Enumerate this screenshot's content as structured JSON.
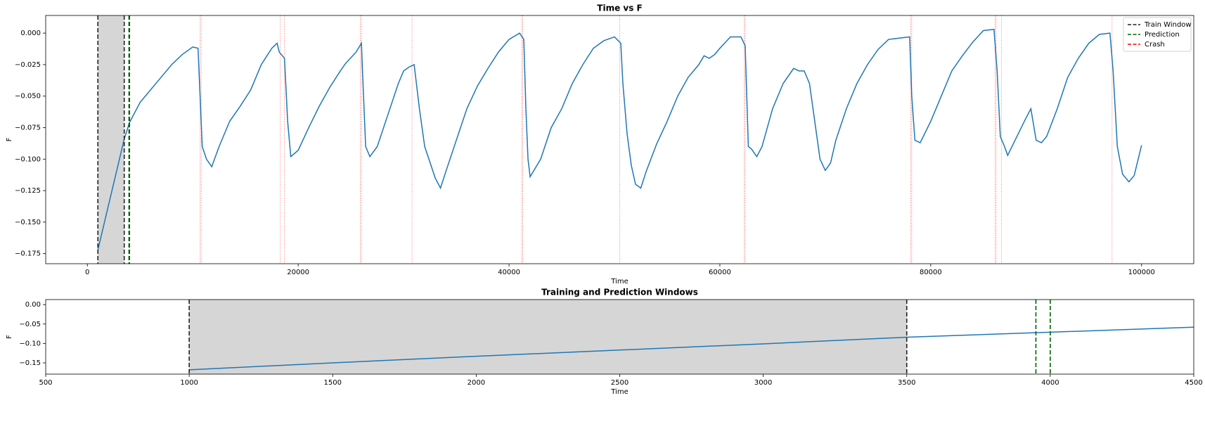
{
  "chart_data": [
    {
      "type": "line",
      "title": "Time vs F",
      "xlabel": "Time",
      "ylabel": "F",
      "color": "#1f77b4",
      "x": [
        1000,
        3500,
        4000,
        5000,
        6000,
        7000,
        8000,
        9000,
        10000,
        10500,
        10900,
        11300,
        11800,
        12500,
        13500,
        14500,
        15500,
        16500,
        17500,
        18000,
        18200,
        18700,
        19000,
        19300,
        20000,
        21000,
        22000,
        23000,
        24000,
        24500,
        25500,
        26000,
        26100,
        26400,
        26800,
        27500,
        28500,
        29500,
        30000,
        30500,
        31000,
        31500,
        32000,
        33000,
        33500,
        34000,
        35000,
        36000,
        37000,
        38000,
        39000,
        40000,
        41000,
        41400,
        41600,
        41800,
        42000,
        43000,
        44000,
        45000,
        46000,
        47000,
        48000,
        49000,
        50000,
        50600,
        50800,
        51200,
        51600,
        52000,
        52500,
        53000,
        54000,
        55000,
        56000,
        57000,
        58000,
        58500,
        59000,
        59500,
        60000,
        61000,
        62000,
        62400,
        62700,
        63000,
        63500,
        64000,
        65000,
        66000,
        67000,
        67500,
        68000,
        68500,
        69000,
        69500,
        70000,
        70500,
        71000,
        72000,
        73000,
        74000,
        75000,
        76000,
        77000,
        78000,
        78200,
        78500,
        79000,
        80000,
        81000,
        82000,
        83000,
        84000,
        85000,
        86000,
        86300,
        86600,
        87000,
        87300,
        88000,
        89000,
        89500,
        90000,
        90500,
        91000,
        92000,
        93000,
        94000,
        95000,
        96000,
        97000,
        97300,
        97700,
        98200,
        98800,
        99300,
        100000
      ],
      "values": [
        -0.172,
        -0.084,
        -0.071,
        -0.055,
        -0.045,
        -0.035,
        -0.025,
        -0.017,
        -0.011,
        -0.012,
        -0.09,
        -0.1,
        -0.106,
        -0.09,
        -0.07,
        -0.058,
        -0.045,
        -0.025,
        -0.012,
        -0.008,
        -0.015,
        -0.02,
        -0.07,
        -0.098,
        -0.093,
        -0.075,
        -0.058,
        -0.043,
        -0.03,
        -0.024,
        -0.015,
        -0.008,
        -0.03,
        -0.09,
        -0.098,
        -0.09,
        -0.065,
        -0.04,
        -0.03,
        -0.027,
        -0.025,
        -0.06,
        -0.09,
        -0.115,
        -0.123,
        -0.11,
        -0.085,
        -0.06,
        -0.042,
        -0.028,
        -0.015,
        -0.005,
        0.0,
        -0.005,
        -0.06,
        -0.1,
        -0.114,
        -0.1,
        -0.075,
        -0.06,
        -0.04,
        -0.025,
        -0.012,
        -0.006,
        -0.003,
        -0.008,
        -0.04,
        -0.08,
        -0.105,
        -0.12,
        -0.123,
        -0.11,
        -0.088,
        -0.07,
        -0.05,
        -0.035,
        -0.025,
        -0.018,
        -0.02,
        -0.017,
        -0.012,
        -0.003,
        -0.003,
        -0.01,
        -0.09,
        -0.092,
        -0.098,
        -0.09,
        -0.06,
        -0.04,
        -0.028,
        -0.03,
        -0.03,
        -0.04,
        -0.07,
        -0.1,
        -0.109,
        -0.103,
        -0.085,
        -0.06,
        -0.04,
        -0.025,
        -0.013,
        -0.005,
        -0.004,
        -0.003,
        -0.05,
        -0.085,
        -0.087,
        -0.07,
        -0.05,
        -0.03,
        -0.018,
        -0.007,
        0.002,
        0.003,
        -0.03,
        -0.082,
        -0.09,
        -0.097,
        -0.085,
        -0.068,
        -0.06,
        -0.085,
        -0.087,
        -0.082,
        -0.06,
        -0.035,
        -0.02,
        -0.008,
        -0.001,
        0.0,
        -0.03,
        -0.09,
        -0.112,
        -0.118,
        -0.113,
        -0.089
      ],
      "train_window": [
        1000,
        3500
      ],
      "prediction_window": [
        3950,
        4000
      ],
      "crashes": [
        10700,
        10800,
        18300,
        18700,
        25900,
        26000,
        30800,
        41200,
        41300,
        50500,
        62300,
        62400,
        78100,
        78200,
        86100,
        86200,
        86700,
        97200
      ],
      "xlim": [
        -3950,
        104950
      ],
      "ylim": [
        -0.183,
        0.014
      ],
      "xticks": [
        0,
        20000,
        40000,
        60000,
        80000,
        100000
      ],
      "yticks": [
        {
          "value": 0,
          "label": "0.000"
        },
        {
          "value": -0.025,
          "label": "−0.025"
        },
        {
          "value": -0.05,
          "label": "−0.050"
        },
        {
          "value": -0.075,
          "label": "−0.075"
        },
        {
          "value": -0.1,
          "label": "−0.100"
        },
        {
          "value": -0.125,
          "label": "−0.125"
        },
        {
          "value": -0.15,
          "label": "−0.150"
        },
        {
          "value": -0.175,
          "label": "−0.175"
        }
      ],
      "legend": {
        "position": "upper right",
        "entries": [
          {
            "name": "Train Window",
            "color": "#222222"
          },
          {
            "name": "Prediction",
            "color": "#006400"
          },
          {
            "name": "Crash",
            "color": "#ff0000"
          }
        ]
      }
    },
    {
      "type": "line",
      "title": "Training and Prediction Windows",
      "xlabel": "Time",
      "ylabel": "F",
      "color": "#1f77b4",
      "x": [
        1000,
        1500,
        2000,
        2500,
        3000,
        3500,
        4000,
        4500
      ],
      "values": [
        -0.168,
        -0.15,
        -0.133,
        -0.117,
        -0.101,
        -0.084,
        -0.071,
        -0.058
      ],
      "train_window": [
        1000,
        3500
      ],
      "prediction_window": [
        3950,
        4000
      ],
      "xlim": [
        500,
        4500
      ],
      "ylim": [
        -0.179,
        0.013
      ],
      "xticks": [
        500,
        1000,
        1500,
        2000,
        2500,
        3000,
        3500,
        4000,
        4500
      ],
      "yticks": [
        {
          "value": 0,
          "label": "0.00"
        },
        {
          "value": -0.05,
          "label": "−0.05"
        },
        {
          "value": -0.1,
          "label": "−0.10"
        },
        {
          "value": -0.15,
          "label": "−0.15"
        }
      ]
    }
  ]
}
